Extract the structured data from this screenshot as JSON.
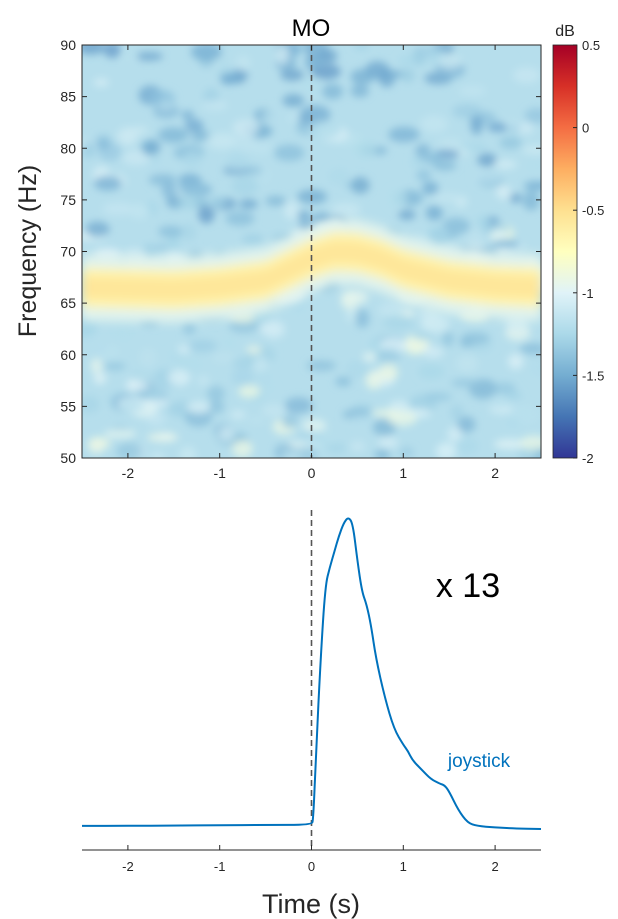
{
  "chart_data": [
    {
      "type": "heatmap",
      "title": "MO",
      "xlabel": "",
      "ylabel": "Frequency (Hz)",
      "xlim": [
        -2.5,
        2.5
      ],
      "ylim": [
        50,
        90
      ],
      "xticks": [
        -2,
        -1,
        0,
        1,
        2
      ],
      "xtick_labels": [
        "-2",
        "-1",
        "0",
        "1",
        "2"
      ],
      "yticks": [
        50,
        55,
        60,
        65,
        70,
        75,
        80,
        85,
        90
      ],
      "ytick_labels": [
        "50",
        "55",
        "60",
        "65",
        "70",
        "75",
        "80",
        "85",
        "90"
      ],
      "event_line_x": 0,
      "band_center_hz": [
        {
          "t": -2.5,
          "f": 66.5
        },
        {
          "t": -2.0,
          "f": 66.4
        },
        {
          "t": -1.5,
          "f": 66.3
        },
        {
          "t": -1.0,
          "f": 66.6
        },
        {
          "t": -0.5,
          "f": 67.2
        },
        {
          "t": 0.0,
          "f": 69.3
        },
        {
          "t": 0.25,
          "f": 70.0
        },
        {
          "t": 0.5,
          "f": 69.9
        },
        {
          "t": 0.75,
          "f": 69.3
        },
        {
          "t": 1.0,
          "f": 68.3
        },
        {
          "t": 1.5,
          "f": 67.2
        },
        {
          "t": 2.0,
          "f": 66.7
        },
        {
          "t": 2.5,
          "f": 66.5
        }
      ],
      "band_peak_db": -0.65,
      "background_db": -1.2,
      "colorbar": {
        "label": "dB",
        "range": [
          -2,
          0.5
        ],
        "ticks": [
          0.5,
          0,
          -0.5,
          -1,
          -1.5,
          -2
        ],
        "tick_labels": [
          "0.5",
          "0",
          "-0.5",
          "-1",
          "-1.5",
          "-2"
        ],
        "colormap": [
          "#313695",
          "#4575b4",
          "#74add1",
          "#abd9e9",
          "#e0f3f8",
          "#ffffbf",
          "#fee090",
          "#fdae61",
          "#f46d43",
          "#d73027",
          "#a50026"
        ]
      }
    },
    {
      "type": "line",
      "title": "",
      "xlabel": "Time (s)",
      "ylabel": "",
      "xlim": [
        -2.5,
        2.5
      ],
      "xticks": [
        -2,
        -1,
        0,
        1,
        2
      ],
      "xtick_labels": [
        "-2",
        "-1",
        "0",
        "1",
        "2"
      ],
      "event_line_x": 0,
      "scale_label": "x 13",
      "series": [
        {
          "name": "joystick",
          "color": "#0072bd",
          "x": [
            -2.5,
            -2.0,
            -1.5,
            -1.0,
            -0.5,
            0.0,
            0.02,
            0.05,
            0.1,
            0.15,
            0.2,
            0.25,
            0.3,
            0.35,
            0.4,
            0.45,
            0.5,
            0.55,
            0.6,
            0.65,
            0.7,
            0.8,
            0.9,
            1.0,
            1.05,
            1.1,
            1.2,
            1.3,
            1.4,
            1.45,
            1.5,
            1.6,
            1.7,
            1.8,
            2.0,
            2.2,
            2.5
          ],
          "y": [
            0.01,
            0.01,
            0.011,
            0.012,
            0.013,
            0.013,
            0.03,
            0.25,
            0.55,
            0.78,
            0.84,
            0.89,
            0.94,
            0.98,
            1.0,
            0.98,
            0.86,
            0.76,
            0.72,
            0.65,
            0.55,
            0.42,
            0.32,
            0.27,
            0.25,
            0.22,
            0.19,
            0.16,
            0.145,
            0.14,
            0.12,
            0.06,
            0.02,
            0.01,
            0.005,
            0.002,
            0.0
          ]
        }
      ]
    }
  ]
}
